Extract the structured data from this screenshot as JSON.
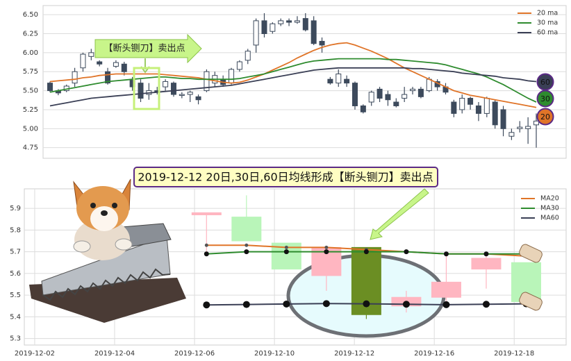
{
  "chart_data": [
    {
      "type": "candlestick",
      "annotation": "【断头铡刀】卖出点",
      "up_color": "#ffffff",
      "down_color": "#3d4a5c",
      "edge_color": "#3d4a5c",
      "candles": {
        "open": [
          5.6,
          5.5,
          5.5,
          5.6,
          5.8,
          5.95,
          5.88,
          5.75,
          5.82,
          5.85,
          5.65,
          5.6,
          5.45,
          5.5,
          5.55,
          5.6,
          5.45,
          5.45,
          5.42,
          5.5,
          5.6,
          5.65,
          5.6,
          5.78,
          5.9,
          6.1,
          6.42,
          6.28,
          6.38,
          6.42,
          6.4,
          6.45,
          6.42,
          6.15,
          5.65,
          5.6,
          5.65,
          5.6,
          5.3,
          5.35,
          5.52,
          5.45,
          5.35,
          5.4,
          5.5,
          5.52,
          5.5,
          5.62,
          5.55,
          5.35,
          5.25,
          5.4,
          5.3,
          5.2,
          5.35,
          5.25,
          4.9,
          5.0,
          5.0,
          5.05
        ],
        "close": [
          5.5,
          5.47,
          5.56,
          5.75,
          5.98,
          6.0,
          5.85,
          5.6,
          5.87,
          5.75,
          5.55,
          5.4,
          5.5,
          5.48,
          5.62,
          5.45,
          5.45,
          5.48,
          5.38,
          5.75,
          5.7,
          5.58,
          5.78,
          5.88,
          6.02,
          6.42,
          6.25,
          6.38,
          6.42,
          6.4,
          6.42,
          6.3,
          6.12,
          6.1,
          5.6,
          5.72,
          5.6,
          5.3,
          5.22,
          5.48,
          5.4,
          5.38,
          5.3,
          5.45,
          5.52,
          5.42,
          5.65,
          5.55,
          5.48,
          5.2,
          5.4,
          5.32,
          5.2,
          5.4,
          5.05,
          5.0,
          4.95,
          5.02,
          5.03,
          5.1
        ],
        "low": [
          5.48,
          5.44,
          5.48,
          5.55,
          5.75,
          5.9,
          5.82,
          5.58,
          5.8,
          5.7,
          5.5,
          5.35,
          5.38,
          5.45,
          5.5,
          5.42,
          5.4,
          5.35,
          5.32,
          5.48,
          5.55,
          5.55,
          5.58,
          5.75,
          5.85,
          6.0,
          6.2,
          6.25,
          6.35,
          6.35,
          6.38,
          6.28,
          6.1,
          6.0,
          5.58,
          5.55,
          5.55,
          5.25,
          5.2,
          5.3,
          5.35,
          5.3,
          5.28,
          5.35,
          5.45,
          5.4,
          5.48,
          5.5,
          5.45,
          5.15,
          5.2,
          5.25,
          5.1,
          5.15,
          5.0,
          4.9,
          4.85,
          4.95,
          4.8,
          4.75
        ],
        "high": [
          5.62,
          5.52,
          5.58,
          5.8,
          6.0,
          6.05,
          5.9,
          5.8,
          5.9,
          5.88,
          5.68,
          5.65,
          5.6,
          5.55,
          5.65,
          5.62,
          5.48,
          5.5,
          5.45,
          5.78,
          5.75,
          5.7,
          5.8,
          5.9,
          6.05,
          6.45,
          6.52,
          6.4,
          6.45,
          6.45,
          6.48,
          6.52,
          6.48,
          6.2,
          5.68,
          5.78,
          5.7,
          5.62,
          5.32,
          5.5,
          5.55,
          5.5,
          5.4,
          5.55,
          5.55,
          5.55,
          5.68,
          5.65,
          5.6,
          5.38,
          5.45,
          5.42,
          5.35,
          5.42,
          5.38,
          5.3,
          5.0,
          5.1,
          5.15,
          5.2
        ]
      },
      "series": [
        {
          "name": "20 ma",
          "color": "#e07428",
          "end_label": "20",
          "values": [
            5.62,
            5.63,
            5.64,
            5.65,
            5.67,
            5.68,
            5.7,
            5.71,
            5.72,
            5.72,
            5.72,
            5.72,
            5.72,
            5.72,
            5.71,
            5.7,
            5.69,
            5.68,
            5.67,
            5.65,
            5.63,
            5.61,
            5.6,
            5.61,
            5.64,
            5.68,
            5.72,
            5.77,
            5.82,
            5.87,
            5.93,
            5.98,
            6.03,
            6.07,
            6.1,
            6.12,
            6.13,
            6.1,
            6.06,
            6.02,
            5.97,
            5.92,
            5.86,
            5.8,
            5.75,
            5.7,
            5.65,
            5.6,
            5.55,
            5.5,
            5.47,
            5.44,
            5.42,
            5.4,
            5.38,
            5.36,
            5.34,
            5.32,
            5.3,
            5.28
          ]
        },
        {
          "name": "30 ma",
          "color": "#2e8b2e",
          "end_label": "30",
          "values": [
            5.48,
            5.5,
            5.52,
            5.54,
            5.56,
            5.58,
            5.6,
            5.62,
            5.63,
            5.64,
            5.65,
            5.66,
            5.67,
            5.68,
            5.68,
            5.67,
            5.66,
            5.66,
            5.65,
            5.65,
            5.65,
            5.65,
            5.65,
            5.66,
            5.68,
            5.7,
            5.72,
            5.75,
            5.78,
            5.81,
            5.84,
            5.87,
            5.89,
            5.9,
            5.91,
            5.92,
            5.92,
            5.92,
            5.92,
            5.92,
            5.92,
            5.91,
            5.91,
            5.9,
            5.89,
            5.88,
            5.87,
            5.86,
            5.84,
            5.81,
            5.78,
            5.75,
            5.72,
            5.68,
            5.63,
            5.58,
            5.52,
            5.46,
            5.4,
            5.35
          ]
        },
        {
          "name": "60 ma",
          "color": "#3a3f55",
          "end_label": "60",
          "values": [
            5.3,
            5.32,
            5.34,
            5.36,
            5.38,
            5.4,
            5.41,
            5.42,
            5.43,
            5.44,
            5.45,
            5.46,
            5.47,
            5.48,
            5.49,
            5.5,
            5.51,
            5.52,
            5.53,
            5.54,
            5.55,
            5.56,
            5.57,
            5.59,
            5.61,
            5.63,
            5.65,
            5.67,
            5.69,
            5.71,
            5.73,
            5.75,
            5.77,
            5.78,
            5.79,
            5.8,
            5.8,
            5.8,
            5.8,
            5.8,
            5.8,
            5.8,
            5.8,
            5.8,
            5.79,
            5.79,
            5.78,
            5.77,
            5.76,
            5.75,
            5.73,
            5.72,
            5.71,
            5.7,
            5.69,
            5.67,
            5.66,
            5.65,
            5.63,
            5.62
          ]
        }
      ],
      "ylim": [
        4.61,
        6.62
      ],
      "yticks": [
        4.75,
        {
          "value": 5.0,
          "label": "5.00"
        },
        5.25,
        {
          "value": 5.5,
          "label": "5.50"
        },
        5.75,
        {
          "value": 6.0,
          "label": "6.00"
        },
        6.25,
        {
          "value": 6.5,
          "label": "6.50"
        }
      ],
      "grid": true,
      "legend": "upper right"
    },
    {
      "type": "candlestick",
      "title": "2019-12-12 20日,30日,60日均线形成【断头铡刀】卖出点",
      "x": [
        4.3,
        5.3,
        6.3,
        7.3,
        8.3,
        9.3,
        10.3,
        11.3,
        12.3
      ],
      "colors": [
        "#ffb6c1",
        "#b9f5b9",
        "#b9f5b9",
        "#ffb6c1",
        "#6b8e23",
        "#ffb6c1",
        "#ffb6c1",
        "#ffb6c1",
        "#b9f5b9"
      ],
      "candles": {
        "open": [
          5.87,
          5.86,
          5.74,
          5.59,
          5.72,
          5.45,
          5.49,
          5.62,
          5.65
        ],
        "close": [
          5.88,
          5.75,
          5.62,
          5.72,
          5.41,
          5.49,
          5.56,
          5.67,
          5.47
        ],
        "low": [
          5.7,
          5.75,
          5.62,
          5.52,
          5.39,
          5.42,
          5.45,
          5.53,
          5.45
        ],
        "high": [
          5.88,
          5.96,
          5.74,
          5.72,
          5.72,
          5.52,
          5.7,
          5.7,
          5.65
        ]
      },
      "series": [
        {
          "name": "MA20",
          "color": "#e07428",
          "marker_size": 2.5,
          "values": [
            5.73,
            5.73,
            5.72,
            5.72,
            5.71,
            5.7,
            5.69,
            5.69,
            5.68
          ]
        },
        {
          "name": "MA30",
          "color": "#2e8b2e",
          "marker_size": 3.5,
          "values": [
            5.69,
            5.7,
            5.7,
            5.7,
            5.7,
            5.7,
            5.69,
            5.69,
            5.69
          ]
        },
        {
          "name": "MA60",
          "color": "#3a3f55",
          "marker_size": 5,
          "values": [
            5.455,
            5.457,
            5.459,
            5.461,
            5.46,
            5.458,
            5.456,
            5.458,
            5.46
          ]
        }
      ],
      "xlim": [
        -0.26,
        13.3
      ],
      "xticks": [
        {
          "value": 0,
          "label": "2019-12-02"
        },
        {
          "value": 2,
          "label": "2019-12-04"
        },
        {
          "value": 4,
          "label": "2019-12-06"
        },
        {
          "value": 6,
          "label": "2019-12-10"
        },
        {
          "value": 8,
          "label": "2019-12-12"
        },
        {
          "value": 10,
          "label": "2019-12-16"
        },
        {
          "value": 12,
          "label": "2019-12-18"
        }
      ],
      "ylim": [
        5.27,
        5.99
      ],
      "yticks": [
        5.3,
        5.4,
        5.5,
        5.6,
        5.7,
        5.8,
        5.9
      ],
      "grid": true,
      "legend": "upper right"
    }
  ]
}
